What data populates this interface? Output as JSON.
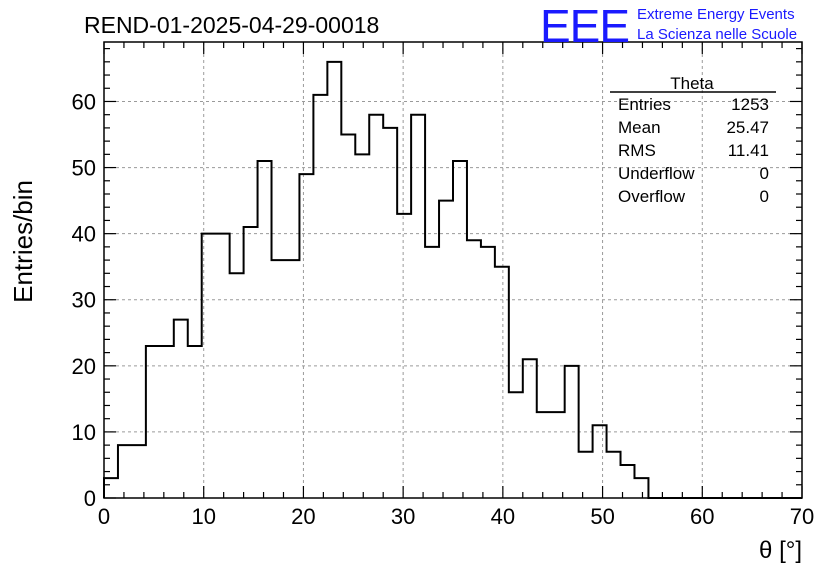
{
  "header": {
    "run_title": "REND-01-2025-04-29-00018",
    "logo_text": "EEE",
    "logo_line1": "Extreme Energy Events",
    "logo_line2": "La Scienza nelle Scuole",
    "logo_color": "#1a1aff"
  },
  "stats_box": {
    "title": "Theta",
    "rows": [
      {
        "label": "Entries",
        "value": "1253"
      },
      {
        "label": "Mean",
        "value": "25.47"
      },
      {
        "label": "RMS",
        "value": "11.41"
      },
      {
        "label": "Underflow",
        "value": "0"
      },
      {
        "label": "Overflow",
        "value": "0"
      }
    ]
  },
  "chart_data": {
    "type": "bar",
    "style": "step-histogram",
    "xlabel": "θ [°]",
    "ylabel": "Entries/bin",
    "xlim": [
      0,
      70
    ],
    "ylim": [
      0,
      69
    ],
    "x_ticks": [
      0,
      10,
      20,
      30,
      40,
      50,
      60,
      70
    ],
    "y_ticks": [
      0,
      10,
      20,
      30,
      40,
      50,
      60
    ],
    "grid": true,
    "bin_width": 1.4,
    "bin_edges_start": 0,
    "values": [
      3,
      8,
      8,
      23,
      23,
      27,
      23,
      40,
      40,
      34,
      41,
      51,
      36,
      36,
      49,
      61,
      66,
      55,
      52,
      58,
      56,
      43,
      58,
      38,
      45,
      51,
      39,
      38,
      35,
      16,
      21,
      13,
      13,
      20,
      7,
      11,
      7,
      5,
      3,
      0,
      0,
      0,
      0,
      0,
      0,
      0,
      0,
      0,
      0,
      0
    ],
    "line_color": "#000000"
  }
}
